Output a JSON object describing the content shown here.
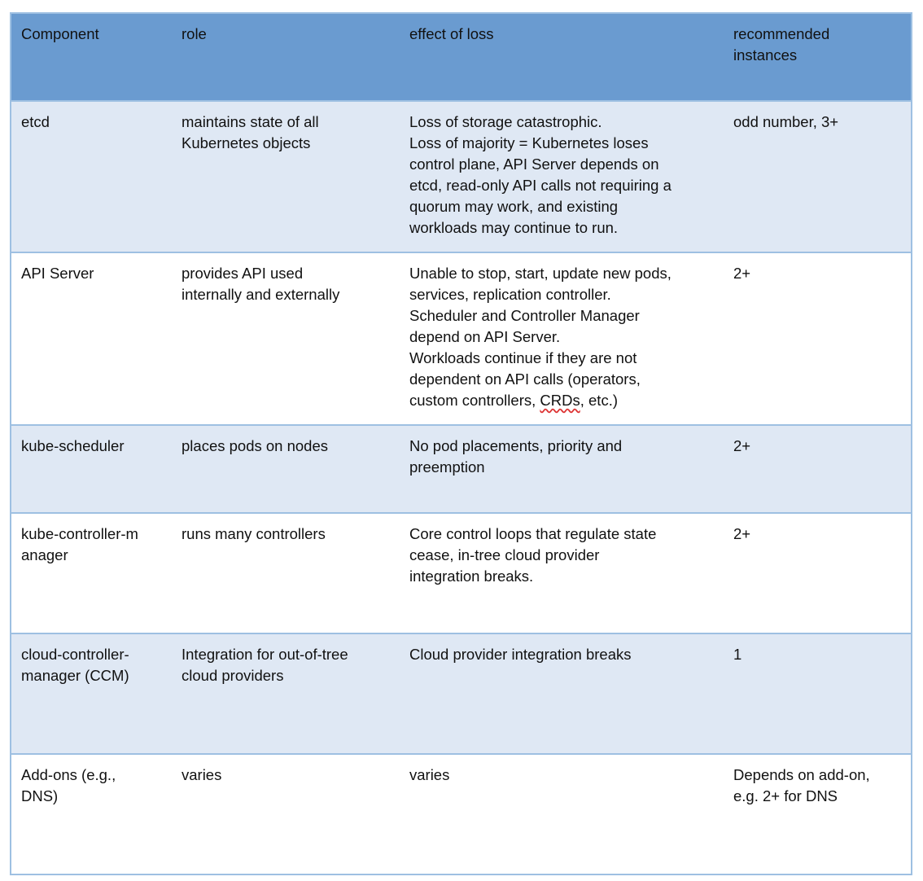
{
  "header": [
    "Component",
    "role",
    "effect of loss",
    "recommended\ninstances"
  ],
  "rows": [
    [
      "etcd",
      "maintains state of all\nKubernetes objects",
      "Loss of storage catastrophic.\nLoss of majority = Kubernetes loses\ncontrol plane, API Server depends on\netcd, read-only API calls not requiring a\nquorum may work, and existing\nworkloads may continue to run.",
      "odd number, 3+"
    ],
    [
      "API Server",
      "provides API used\ninternally and externally",
      "Unable to stop, start, update new pods,\nservices, replication controller.\nScheduler and Controller Manager\ndepend on API Server.\nWorkloads continue if they are not\ndependent on API calls (operators,\ncustom controllers, CRDs, etc.)",
      "2+"
    ],
    [
      "kube-scheduler",
      "places pods on nodes",
      "No pod placements, priority and\npreemption",
      "2+"
    ],
    [
      "kube-controller-m\nanager",
      "runs many controllers",
      "Core control loops that regulate state\ncease, in-tree cloud provider\nintegration breaks.",
      "2+"
    ],
    [
      "cloud-controller-\nmanager (CCM)",
      "Integration for out-of-tree\ncloud providers",
      "Cloud provider integration breaks",
      "1"
    ],
    [
      "Add-ons (e.g.,\nDNS)",
      "varies",
      "varies",
      "Depends on add-on,\ne.g. 2+ for DNS"
    ]
  ],
  "colors": {
    "header_bg": "#6a9bd0",
    "stripe_bg": "#dfe8f4",
    "border": "#9ec0e2"
  }
}
